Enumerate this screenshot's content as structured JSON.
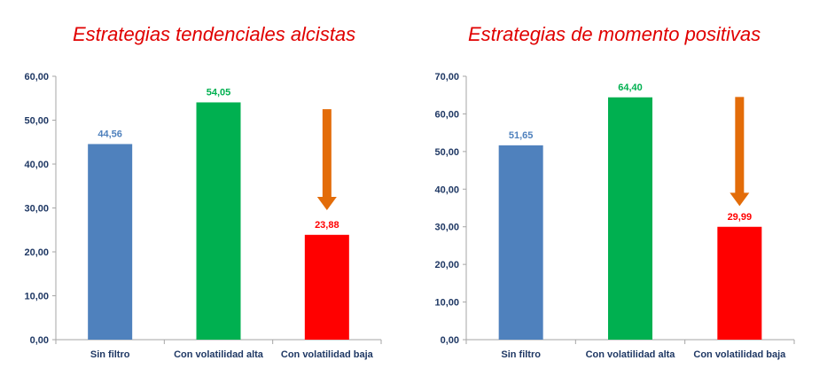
{
  "chart_data": [
    {
      "type": "bar",
      "title": "Estrategias tendenciales alcistas",
      "categories": [
        "Sin filtro",
        "Con volatilidad alta",
        "Con volatilidad baja"
      ],
      "values": [
        44.56,
        54.05,
        23.88
      ],
      "value_labels": [
        "44,56",
        "54,05",
        "23,88"
      ],
      "bar_colors": [
        "#4f81bd",
        "#00b050",
        "#ff0000"
      ],
      "label_colors": [
        "#4f81bd",
        "#00b050",
        "#ff0000"
      ],
      "ylim": [
        0,
        60
      ],
      "yticks": [
        0,
        10,
        20,
        30,
        40,
        50,
        60
      ],
      "ytick_labels": [
        "0,00",
        "10,00",
        "20,00",
        "30,00",
        "40,00",
        "50,00",
        "60,00"
      ],
      "grid": false,
      "arrow": {
        "color": "#e36c09",
        "category": "Con volatilidad baja",
        "from_value": 52.5,
        "to_value": 29.5
      }
    },
    {
      "type": "bar",
      "title": "Estrategias de momento positivas",
      "categories": [
        "Sin filtro",
        "Con volatilidad alta",
        "Con volatilidad baja"
      ],
      "values": [
        51.65,
        64.4,
        29.99
      ],
      "value_labels": [
        "51,65",
        "64,40",
        "29,99"
      ],
      "bar_colors": [
        "#4f81bd",
        "#00b050",
        "#ff0000"
      ],
      "label_colors": [
        "#4f81bd",
        "#00b050",
        "#ff0000"
      ],
      "ylim": [
        0,
        70
      ],
      "yticks": [
        0,
        10,
        20,
        30,
        40,
        50,
        60,
        70
      ],
      "ytick_labels": [
        "0,00",
        "10,00",
        "20,00",
        "30,00",
        "40,00",
        "50,00",
        "60,00",
        "70,00"
      ],
      "grid": false,
      "arrow": {
        "color": "#e36c09",
        "category": "Con volatilidad baja",
        "from_value": 64.5,
        "to_value": 35.5
      }
    }
  ]
}
